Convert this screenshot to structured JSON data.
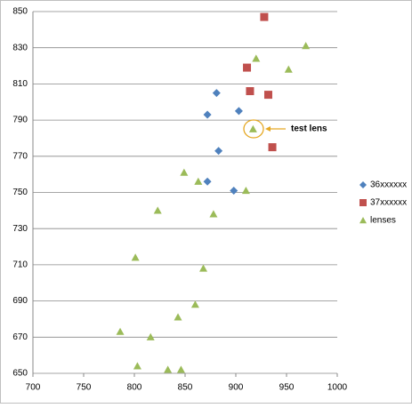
{
  "chart_data": {
    "type": "scatter",
    "series": [
      {
        "name": "36xxxxxx",
        "color": "#4f81bd",
        "marker": "diamond",
        "x": [
          881,
          872,
          903,
          883,
          872,
          898
        ],
        "values": [
          805,
          793,
          795,
          773,
          756,
          751
        ]
      },
      {
        "name": "37xxxxxx",
        "color": "#c0504d",
        "marker": "square",
        "x": [
          928,
          911,
          914,
          932,
          936
        ],
        "values": [
          847,
          819,
          806,
          804,
          775
        ]
      },
      {
        "name": "lenses",
        "color": "#9bbb59",
        "marker": "triangle",
        "x": [
          969,
          920,
          952,
          917,
          849,
          863,
          910,
          823,
          878,
          801,
          868,
          860,
          843,
          786,
          816,
          803,
          833,
          846
        ],
        "values": [
          831,
          824,
          818,
          785,
          761,
          756,
          751,
          740,
          738,
          714,
          708,
          688,
          681,
          673,
          670,
          654,
          652,
          652
        ]
      }
    ],
    "xlim": [
      700,
      1000
    ],
    "xticks": [
      700,
      750,
      800,
      850,
      900,
      950,
      1000
    ],
    "ylim": [
      650,
      850
    ],
    "yticks": [
      650,
      670,
      690,
      710,
      730,
      750,
      770,
      790,
      810,
      830,
      850
    ],
    "grid": true,
    "legend": "right",
    "annotations": [
      {
        "text": "test lens",
        "color": "#e5a823"
      }
    ]
  }
}
